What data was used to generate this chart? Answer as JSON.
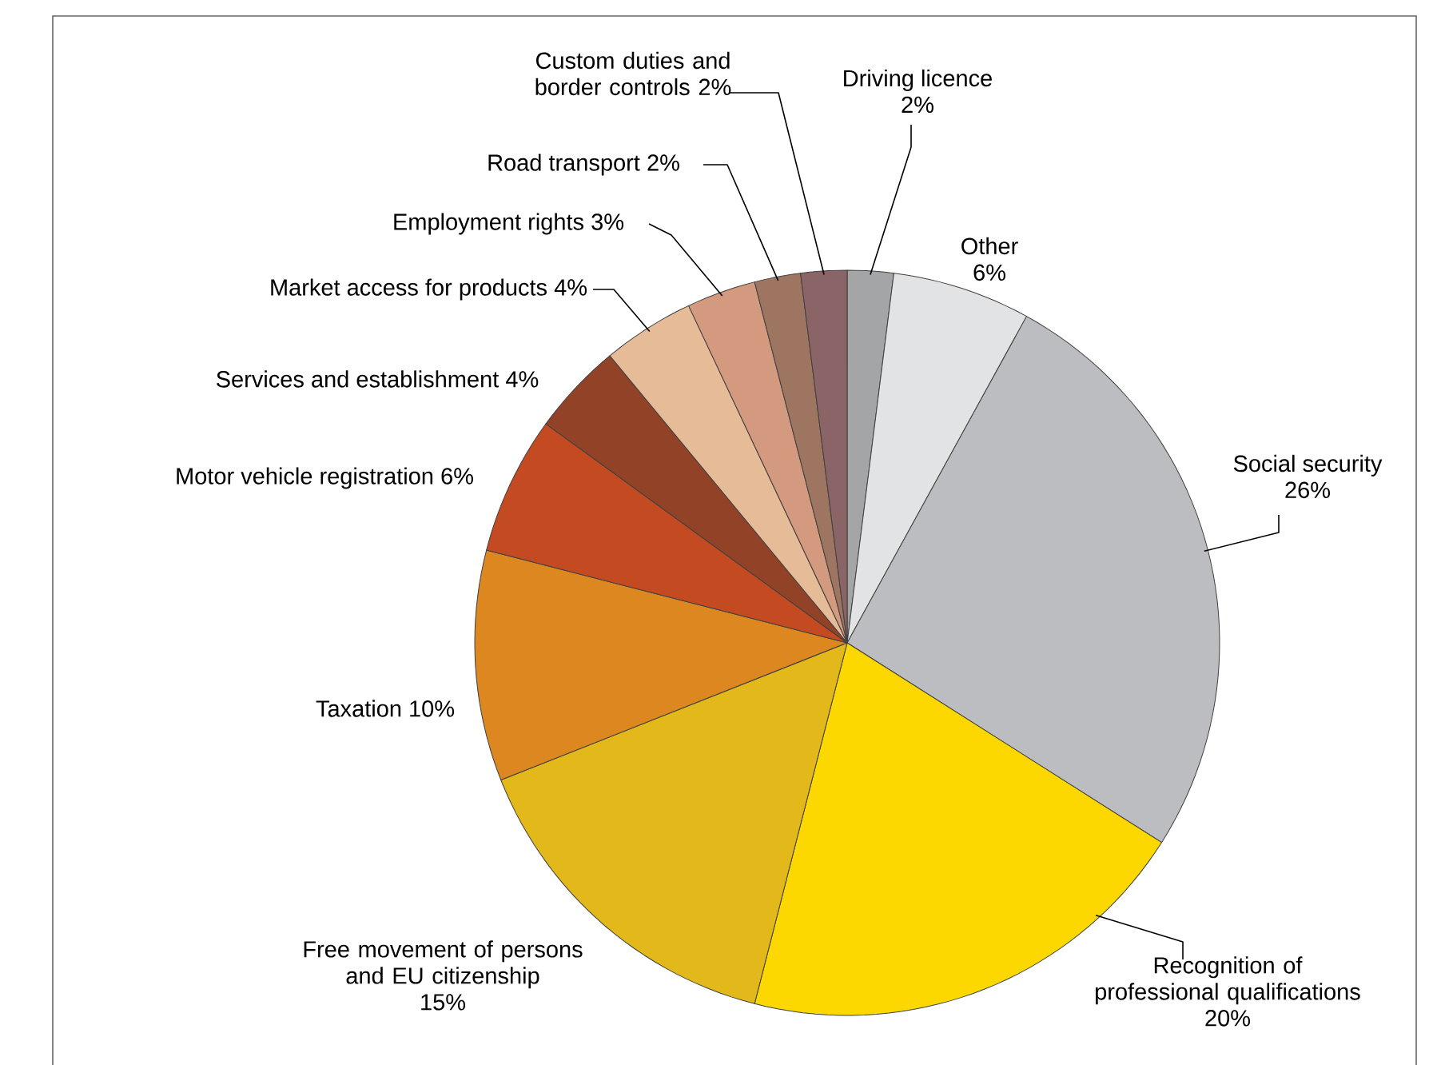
{
  "chart_data": {
    "type": "pie",
    "categories": [
      "Driving licence",
      "Other",
      "Social security",
      "Recognition of professional qualifications",
      "Free movement of persons and EU citizenship",
      "Taxation",
      "Motor vehicle registration",
      "Services and establishment",
      "Market access for products",
      "Employment rights",
      "Road transport",
      "Custom duties and border controls"
    ],
    "values": [
      2,
      6,
      26,
      20,
      15,
      10,
      6,
      4,
      4,
      3,
      2,
      2
    ],
    "value_labels": [
      "2%",
      "6%",
      "26%",
      "20%",
      "15%",
      "10%",
      "6%",
      "4%",
      "4%",
      "3%",
      "2%",
      "2%"
    ],
    "colors": [
      "#a4a5a7",
      "#e2e3e5",
      "#bcbdc1",
      "#fdd800",
      "#e3b81b",
      "#dc8720",
      "#c44a22",
      "#924327",
      "#e6bb98",
      "#d49a80",
      "#9d7560",
      "#8b6467"
    ]
  }
}
